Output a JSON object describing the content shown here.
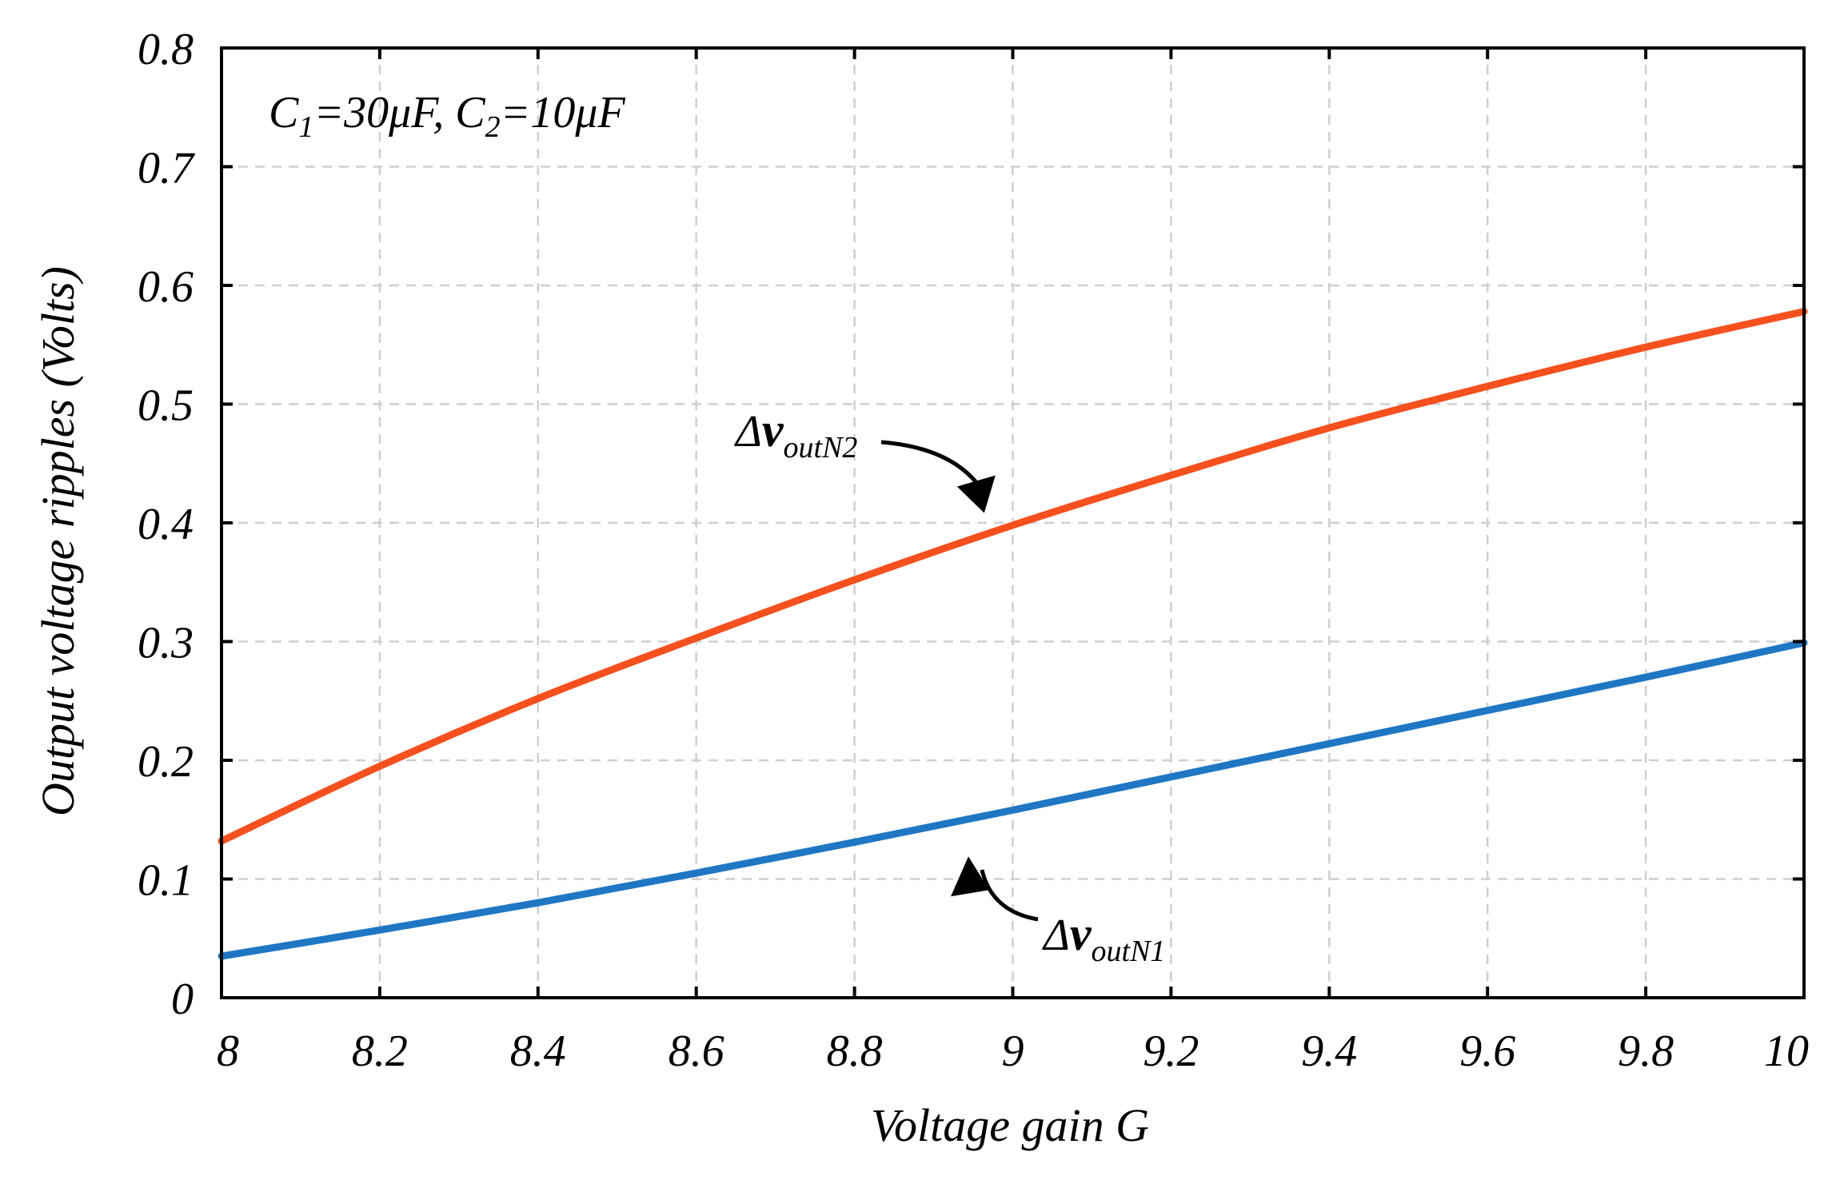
{
  "chart_data": {
    "type": "line",
    "title": "",
    "xlabel": "Voltage gain G",
    "ylabel": "Output voltage ripples (Volts)",
    "xlim": [
      8,
      10
    ],
    "ylim": [
      0,
      0.8
    ],
    "xticks": [
      8,
      8.2,
      8.4,
      8.6,
      8.8,
      9,
      9.2,
      9.4,
      9.6,
      9.8,
      10
    ],
    "xtick_labels": [
      "8",
      "8.2",
      "8.4",
      "8.6",
      "8.8",
      "9",
      "9.2",
      "9.4",
      "9.6",
      "9.8",
      "10"
    ],
    "yticks": [
      0,
      0.1,
      0.2,
      0.3,
      0.4,
      0.5,
      0.6,
      0.7,
      0.8
    ],
    "ytick_labels": [
      "0",
      "0.1",
      "0.2",
      "0.3",
      "0.4",
      "0.5",
      "0.6",
      "0.7",
      "0.8"
    ],
    "grid": true,
    "x": [
      8,
      8.2,
      8.4,
      8.6,
      8.8,
      9,
      9.2,
      9.4,
      9.6,
      9.8,
      10
    ],
    "series": [
      {
        "name": "ΔvoutN1",
        "color": "#1f77c4",
        "values": [
          0.035,
          0.057,
          0.08,
          0.105,
          0.131,
          0.158,
          0.186,
          0.214,
          0.242,
          0.27,
          0.299
        ]
      },
      {
        "name": "ΔvoutN2",
        "color": "#f5501e",
        "values": [
          0.132,
          0.195,
          0.252,
          0.303,
          0.352,
          0.398,
          0.44,
          0.48,
          0.515,
          0.548,
          0.578
        ]
      }
    ],
    "annotation": {
      "parts": [
        {
          "t": "C",
          "sub": false
        },
        {
          "t": "1",
          "sub": true
        },
        {
          "t": "=30μF, C",
          "sub": false
        },
        {
          "t": "2",
          "sub": true
        },
        {
          "t": "=10μF",
          "sub": false
        }
      ]
    },
    "callouts": [
      {
        "series": "ΔvoutN2",
        "delta": "Δ",
        "main": "v",
        "sub": "outN2",
        "point": [
          8.97,
          0.405
        ]
      },
      {
        "series": "ΔvoutN1",
        "delta": "Δ",
        "main": "v",
        "sub": "outN1",
        "point": [
          8.95,
          0.115
        ]
      }
    ]
  }
}
